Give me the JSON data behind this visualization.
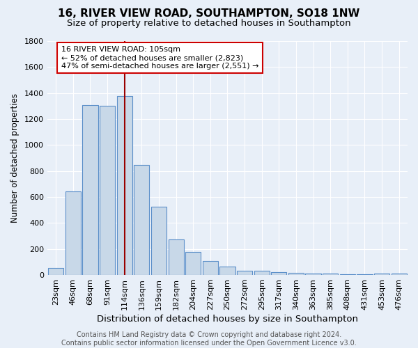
{
  "title": "16, RIVER VIEW ROAD, SOUTHAMPTON, SO18 1NW",
  "subtitle": "Size of property relative to detached houses in Southampton",
  "xlabel": "Distribution of detached houses by size in Southampton",
  "ylabel": "Number of detached properties",
  "categories": [
    "23sqm",
    "46sqm",
    "68sqm",
    "91sqm",
    "114sqm",
    "136sqm",
    "159sqm",
    "182sqm",
    "204sqm",
    "227sqm",
    "250sqm",
    "272sqm",
    "295sqm",
    "317sqm",
    "340sqm",
    "363sqm",
    "385sqm",
    "408sqm",
    "431sqm",
    "453sqm",
    "476sqm"
  ],
  "values": [
    55,
    645,
    1305,
    1300,
    1375,
    845,
    525,
    275,
    175,
    105,
    65,
    35,
    30,
    20,
    15,
    10,
    10,
    5,
    5,
    10,
    10
  ],
  "bar_color": "#c8d8e8",
  "bar_edge_color": "#5b8fc9",
  "vline_x": 4,
  "vline_color": "#990000",
  "annotation_text": "16 RIVER VIEW ROAD: 105sqm\n← 52% of detached houses are smaller (2,823)\n47% of semi-detached houses are larger (2,551) →",
  "annotation_box_facecolor": "#ffffff",
  "annotation_box_edge": "#cc0000",
  "ylim": [
    0,
    1800
  ],
  "yticks": [
    0,
    200,
    400,
    600,
    800,
    1000,
    1200,
    1400,
    1600,
    1800
  ],
  "background_color": "#e8eff8",
  "grid_color": "#ffffff",
  "footer": "Contains HM Land Registry data © Crown copyright and database right 2024.\nContains public sector information licensed under the Open Government Licence v3.0.",
  "title_fontsize": 11,
  "subtitle_fontsize": 9.5,
  "xlabel_fontsize": 9.5,
  "ylabel_fontsize": 8.5,
  "tick_fontsize": 8,
  "footer_fontsize": 7,
  "annot_fontsize": 8
}
